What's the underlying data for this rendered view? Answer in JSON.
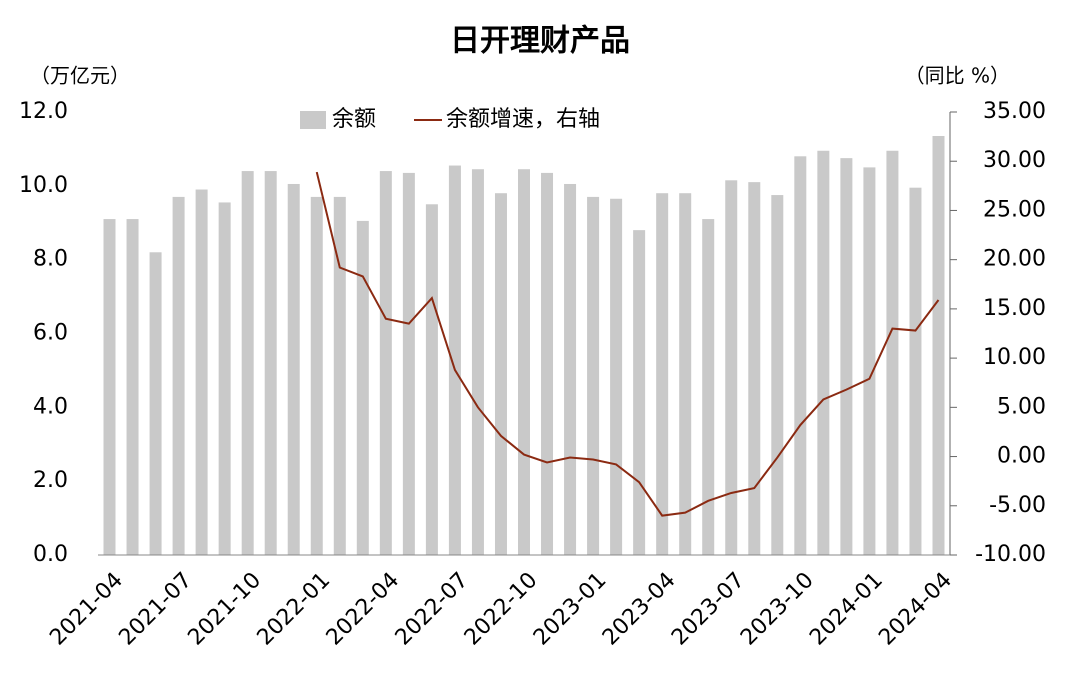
{
  "chart_data": {
    "type": "bar-line",
    "title": "日开理财产品",
    "y_label": "（万亿元）",
    "y2_label": "（同比 %）",
    "categories": [
      "2021-04",
      null,
      null,
      "2021-07",
      null,
      null,
      "2021-10",
      null,
      null,
      "2022-01",
      null,
      null,
      "2022-04",
      null,
      null,
      "2022-07",
      null,
      null,
      "2022-10",
      null,
      null,
      "2023-01",
      null,
      null,
      "2023-04",
      null,
      null,
      "2023-07",
      null,
      null,
      "2023-10",
      null,
      null,
      "2024-01",
      null,
      null,
      "2024-04"
    ],
    "series": [
      {
        "name": "余额",
        "type": "bar",
        "color": "#c9c9c9",
        "values": [
          9.1,
          9.1,
          8.2,
          9.7,
          9.9,
          9.55,
          10.4,
          10.4,
          10.05,
          9.7,
          9.7,
          9.05,
          10.4,
          10.35,
          9.5,
          10.55,
          10.45,
          9.8,
          10.45,
          10.35,
          10.05,
          9.7,
          9.65,
          8.8,
          9.8,
          9.8,
          9.1,
          10.15,
          10.1,
          9.75,
          10.8,
          10.95,
          10.75,
          10.5,
          10.95,
          9.95,
          11.35
        ]
      },
      {
        "name": "余额增速，右轴",
        "type": "line",
        "axis": "y2",
        "color": "#8b2a12",
        "values": [
          null,
          null,
          null,
          null,
          null,
          null,
          null,
          null,
          null,
          28.9,
          19.2,
          18.3,
          14.0,
          13.5,
          16.1,
          8.8,
          5.0,
          2.1,
          0.2,
          -0.6,
          -0.1,
          -0.3,
          -0.8,
          -2.6,
          -6.0,
          -5.7,
          -4.5,
          -3.7,
          -3.2,
          -0.1,
          3.2,
          5.8,
          6.8,
          7.9,
          13.0,
          12.8,
          15.9
        ]
      }
    ],
    "ylim": [
      0,
      12
    ],
    "yticks": [
      {
        "value": 0,
        "label": "0.0"
      },
      {
        "value": 2,
        "label": "2.0"
      },
      {
        "value": 4,
        "label": "4.0"
      },
      {
        "value": 6,
        "label": "6.0"
      },
      {
        "value": 8,
        "label": "8.0"
      },
      {
        "value": 10,
        "label": "10.0"
      },
      {
        "value": 12,
        "label": "12.0"
      }
    ],
    "y2lim": [
      -10,
      35
    ],
    "y2ticks": [
      {
        "value": -10,
        "label": "-10.00"
      },
      {
        "value": -5,
        "label": "-5.00"
      },
      {
        "value": 0,
        "label": "0.00"
      },
      {
        "value": 5,
        "label": "5.00"
      },
      {
        "value": 10,
        "label": "10.00"
      },
      {
        "value": 15,
        "label": "15.00"
      },
      {
        "value": 20,
        "label": "20.00"
      },
      {
        "value": 25,
        "label": "25.00"
      },
      {
        "value": 30,
        "label": "30.00"
      },
      {
        "value": 35,
        "label": "35.00"
      }
    ],
    "legend": "top"
  }
}
